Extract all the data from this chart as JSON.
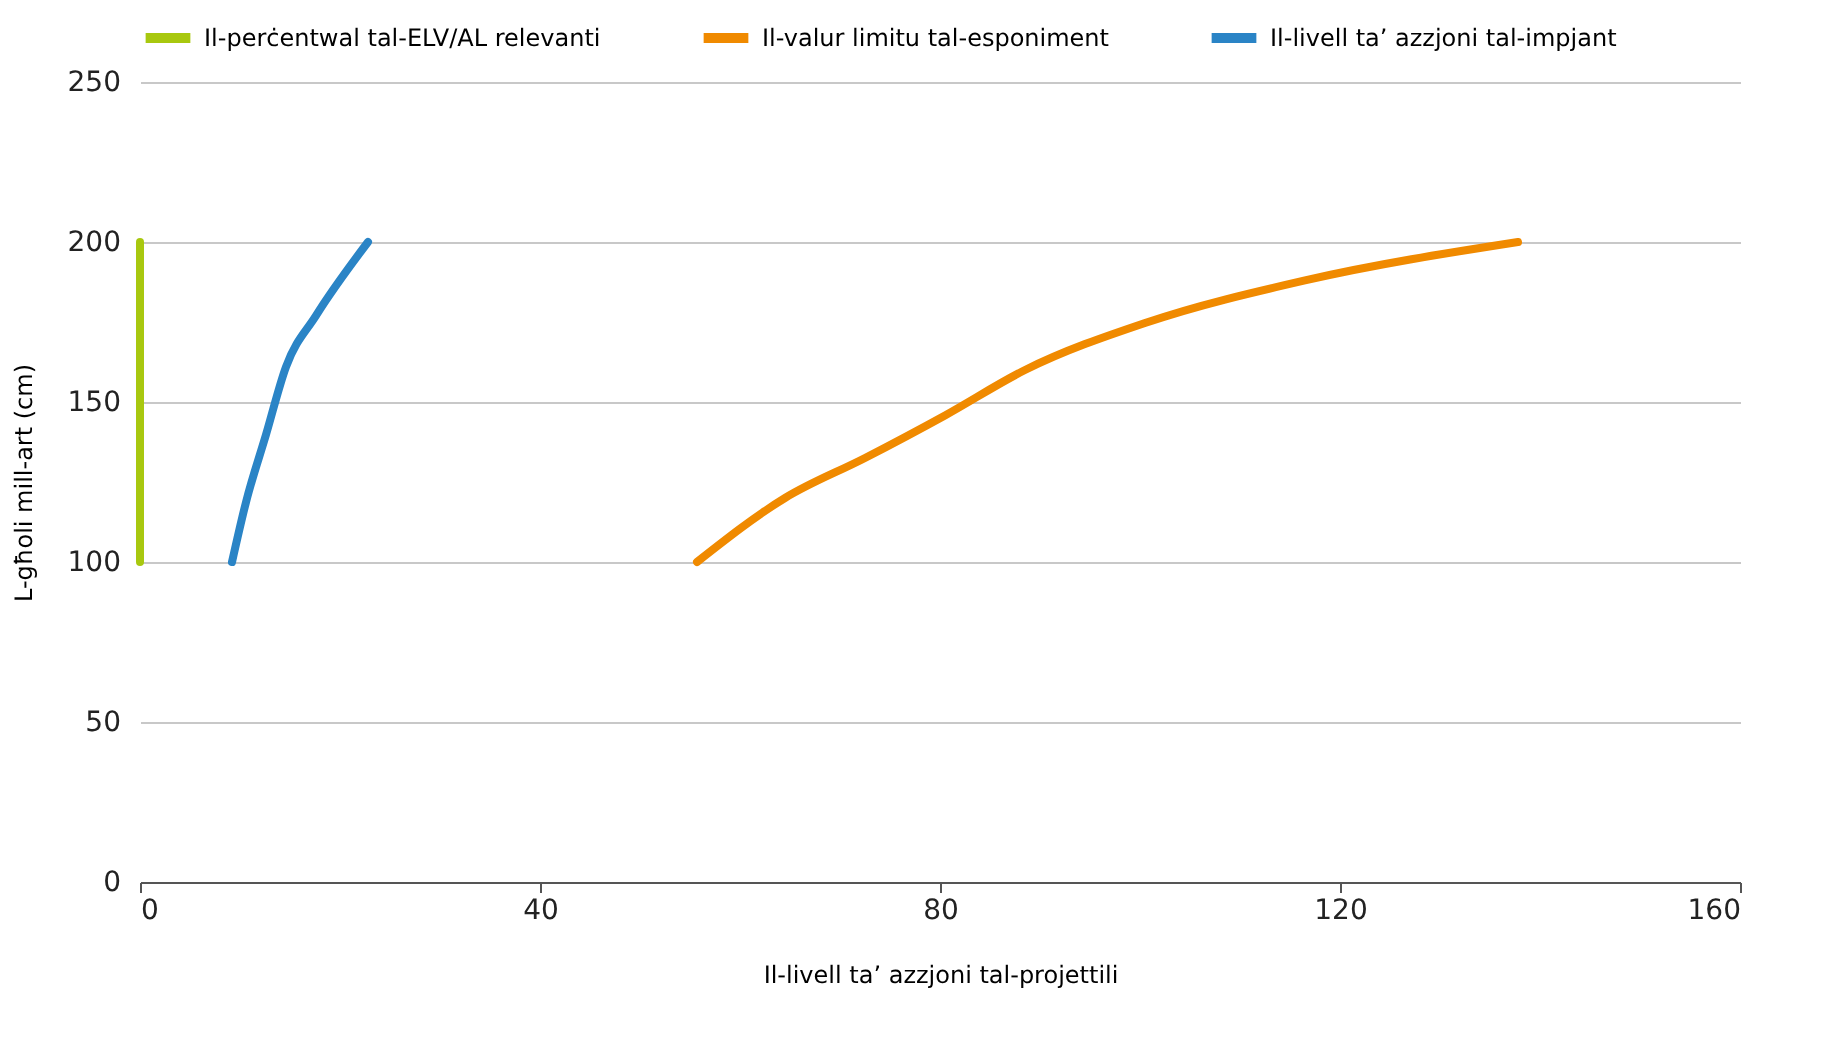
{
  "chart_data": {
    "type": "line",
    "xlabel": "Il-livell ta’ azzjoni tal-projettili",
    "ylabel": "L-għoli mill-art (cm)",
    "series": [
      {
        "name": "Il-perċentwal tal-ELV/AL relevanti",
        "color": "#a8c80f",
        "x": [
          0,
          0
        ],
        "values": [
          100,
          200
        ]
      },
      {
        "name": "Il-valur limitu tal-esponiment",
        "color": "#f08a00",
        "x": [
          55.7,
          64.5,
          72.5,
          80.5,
          88.5,
          100.5,
          116.5,
          137.8
        ],
        "values": [
          100,
          120,
          132.5,
          145.8,
          160,
          174.7,
          188,
          200
        ]
      },
      {
        "name": "Il-livell ta’ azzjoni tal-impjant",
        "color": "#2a84c6",
        "x": [
          9.2,
          10.6,
          12.6,
          14.6,
          17.6,
          22.8
        ],
        "values": [
          100,
          118.7,
          139.8,
          161,
          177,
          200
        ]
      }
    ],
    "xlim": [
      0,
      160
    ],
    "xticks": [
      0,
      40,
      80,
      120,
      160
    ],
    "ylim": [
      0,
      250
    ],
    "yticks": [
      0,
      50,
      100,
      150,
      200,
      250
    ],
    "grid": "y",
    "legend": "top",
    "line_style": "solid",
    "marker": "none"
  }
}
